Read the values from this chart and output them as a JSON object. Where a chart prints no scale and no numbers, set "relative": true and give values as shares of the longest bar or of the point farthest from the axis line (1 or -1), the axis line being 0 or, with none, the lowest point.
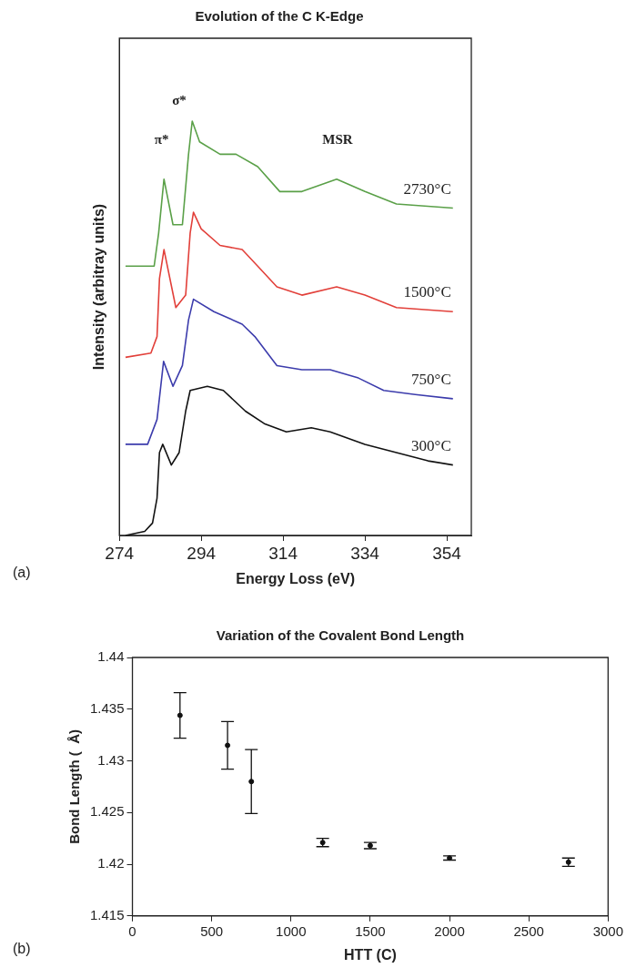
{
  "chart_data": [
    {
      "type": "line",
      "title": "Evolution of the C K-Edge",
      "xlabel": "Energy Loss (eV)",
      "ylabel": "Intensity (arbitray units)",
      "relative": true,
      "xlim": [
        274,
        360
      ],
      "xticks": [
        274,
        294,
        314,
        334,
        354
      ],
      "grid": false,
      "legend": false,
      "marker": "none",
      "line_style": "solid",
      "series": [
        {
          "name": "300°C",
          "color": "#111111",
          "x": [
            275.5,
            280.2,
            282.1,
            283.2,
            283.8,
            284.6,
            286.7,
            288.6,
            290.2,
            291.3,
            295.5,
            299.4,
            304.8,
            309.4,
            314.8,
            320.9,
            325.5,
            334,
            341.7,
            349.4,
            355.5
          ],
          "values": [
            0,
            0.01,
            0.03,
            0.09,
            0.2,
            0.22,
            0.17,
            0.2,
            0.3,
            0.35,
            0.36,
            0.35,
            0.3,
            0.27,
            0.25,
            0.26,
            0.25,
            0.22,
            0.2,
            0.18,
            0.17
          ]
        },
        {
          "name": "750°C",
          "color": "#3c3cac",
          "x": [
            275.5,
            280.9,
            283.2,
            284.8,
            287.1,
            289.4,
            290.9,
            292.1,
            297.1,
            304,
            307.1,
            312.5,
            318.6,
            325.5,
            332.4,
            338.6,
            346.3,
            355.5
          ],
          "values": [
            0.22,
            0.22,
            0.28,
            0.42,
            0.36,
            0.41,
            0.52,
            0.57,
            0.54,
            0.51,
            0.48,
            0.41,
            0.4,
            0.4,
            0.38,
            0.35,
            0.34,
            0.33
          ]
        },
        {
          "name": "1500°C",
          "color": "#e2403a",
          "x": [
            275.5,
            281.7,
            283.2,
            283.8,
            284.9,
            287.8,
            290.2,
            291.3,
            292.1,
            294,
            298.6,
            304,
            307.8,
            312.5,
            318.6,
            327.1,
            334,
            341.7,
            355.5
          ],
          "values": [
            0.43,
            0.44,
            0.48,
            0.62,
            0.69,
            0.55,
            0.58,
            0.73,
            0.78,
            0.74,
            0.7,
            0.69,
            0.65,
            0.6,
            0.58,
            0.6,
            0.58,
            0.55,
            0.54
          ]
        },
        {
          "name": "2730°C",
          "color": "#5aa048",
          "x": [
            275.5,
            282.5,
            283.6,
            284.9,
            287.1,
            289.4,
            290.9,
            291.8,
            293.6,
            298.6,
            302.5,
            307.8,
            313.2,
            318.6,
            327.1,
            334,
            341.7,
            355.5
          ],
          "values": [
            0.65,
            0.65,
            0.73,
            0.86,
            0.75,
            0.75,
            0.92,
            1,
            0.95,
            0.92,
            0.92,
            0.89,
            0.83,
            0.83,
            0.86,
            0.83,
            0.8,
            0.79
          ]
        }
      ],
      "annotations": [
        "π*",
        "σ*",
        "MSR",
        "(a)"
      ]
    },
    {
      "type": "scatter",
      "title": "Variation of the Covalent Bond Length",
      "xlabel": "HTT (C)",
      "ylabel": "Bond Length (  Å)",
      "xlim": [
        0,
        3000
      ],
      "xticks": [
        0,
        500,
        1000,
        1500,
        2000,
        2500,
        3000
      ],
      "ylim": [
        1.415,
        1.44
      ],
      "yticks": [
        1.415,
        1.42,
        1.425,
        1.43,
        1.435,
        1.44
      ],
      "grid": false,
      "legend": false,
      "marker": "circle",
      "color": "#111111",
      "x": [
        300,
        600,
        750,
        1200,
        1500,
        2000,
        2750
      ],
      "values": [
        1.4344,
        1.4315,
        1.428,
        1.4221,
        1.4218,
        1.4206,
        1.4202
      ],
      "errors": [
        0.0022,
        0.0023,
        0.0031,
        0.0004,
        0.0003,
        0.0002,
        0.0004
      ],
      "annotations": [
        "(b)"
      ]
    }
  ]
}
